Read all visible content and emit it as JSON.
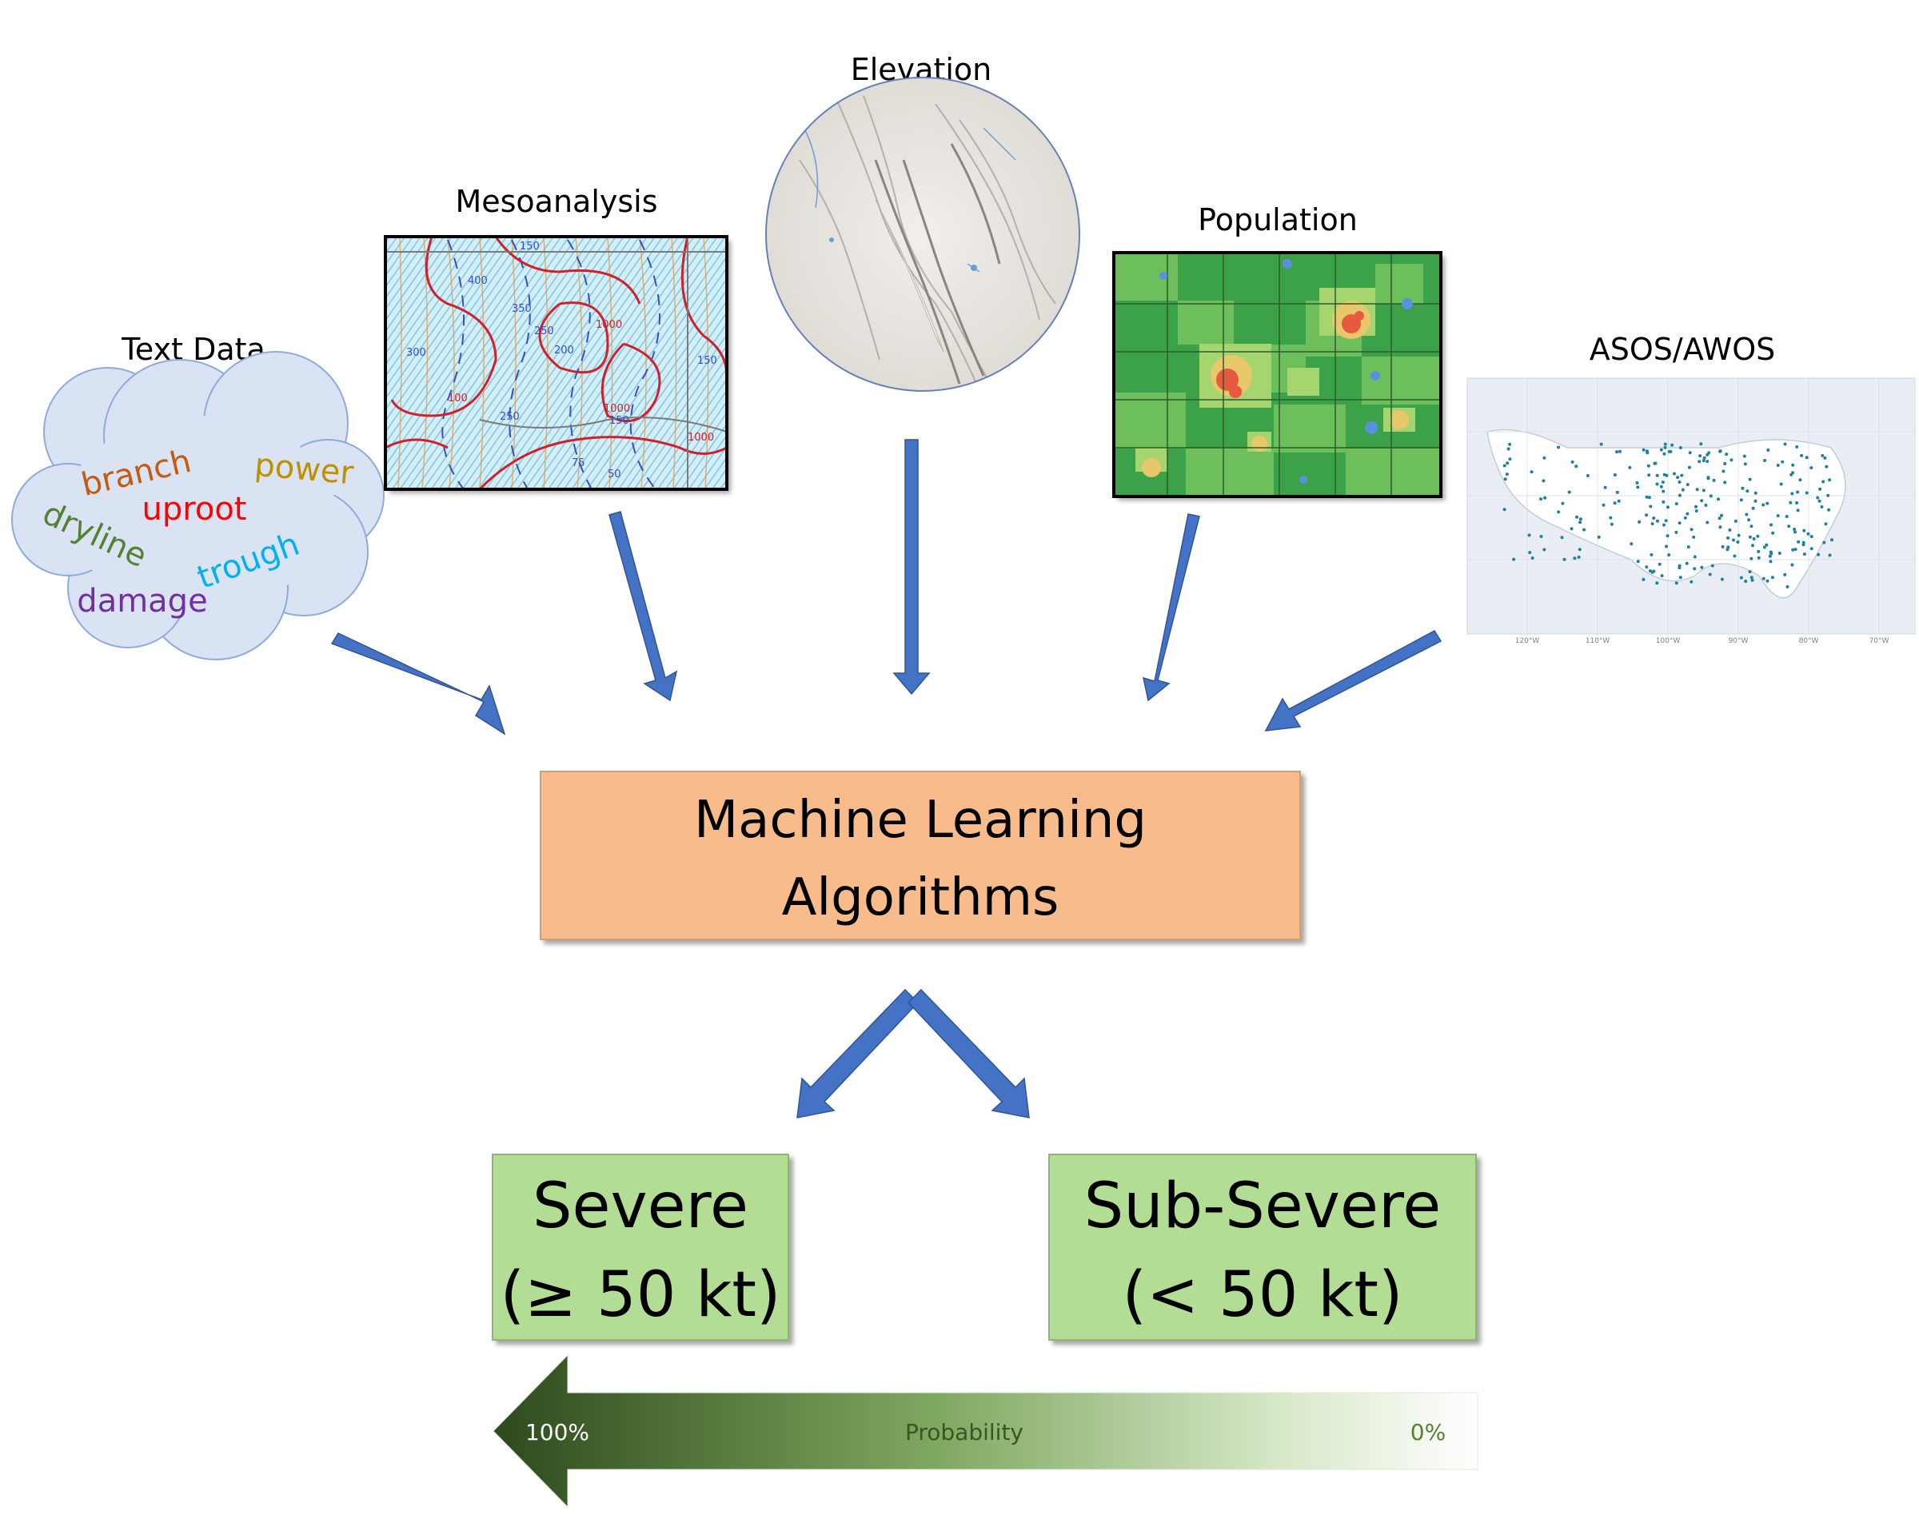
{
  "inputs": {
    "text_data": {
      "label": "Text Data",
      "words": [
        {
          "text": "branch",
          "color": "#c55a11"
        },
        {
          "text": "power",
          "color": "#bf9000"
        },
        {
          "text": "uproot",
          "color": "#ff0000"
        },
        {
          "text": "dryline",
          "color": "#548235"
        },
        {
          "text": "trough",
          "color": "#00b0f0"
        },
        {
          "text": "damage",
          "color": "#7030a0"
        }
      ]
    },
    "mesoanalysis": {
      "label": "Mesoanalysis",
      "contour_labels": [
        "150",
        "400",
        "350",
        "250",
        "200",
        "300",
        "1000",
        "1000",
        "150",
        "150",
        "50",
        "1000",
        "100",
        "75",
        "250"
      ]
    },
    "elevation": {
      "label": "Elevation"
    },
    "population": {
      "label": "Population"
    },
    "asos_awos": {
      "label": "ASOS/AWOS",
      "lon_ticks": [
        "120°W",
        "110°W",
        "100°W",
        "90°W",
        "80°W",
        "70°W"
      ]
    }
  },
  "center": {
    "line1": "Machine Learning",
    "line2": "Algorithms",
    "fill": "#f8bb8b"
  },
  "outputs": {
    "severe": {
      "line1": "Severe",
      "line2": "(≥ 50 kt)"
    },
    "sub_severe": {
      "line1": "Sub-Severe",
      "line2": "(< 50 kt)"
    },
    "fill": "#b3dd94"
  },
  "probability_bar": {
    "label": "Probability",
    "left_label": "100%",
    "right_label": "0%",
    "dark_color": "#375623",
    "light_color": "#ffffff"
  },
  "colors": {
    "arrow": "#4472c4",
    "cloud_fill": "#dae3f3",
    "cloud_stroke": "#8faadc"
  }
}
